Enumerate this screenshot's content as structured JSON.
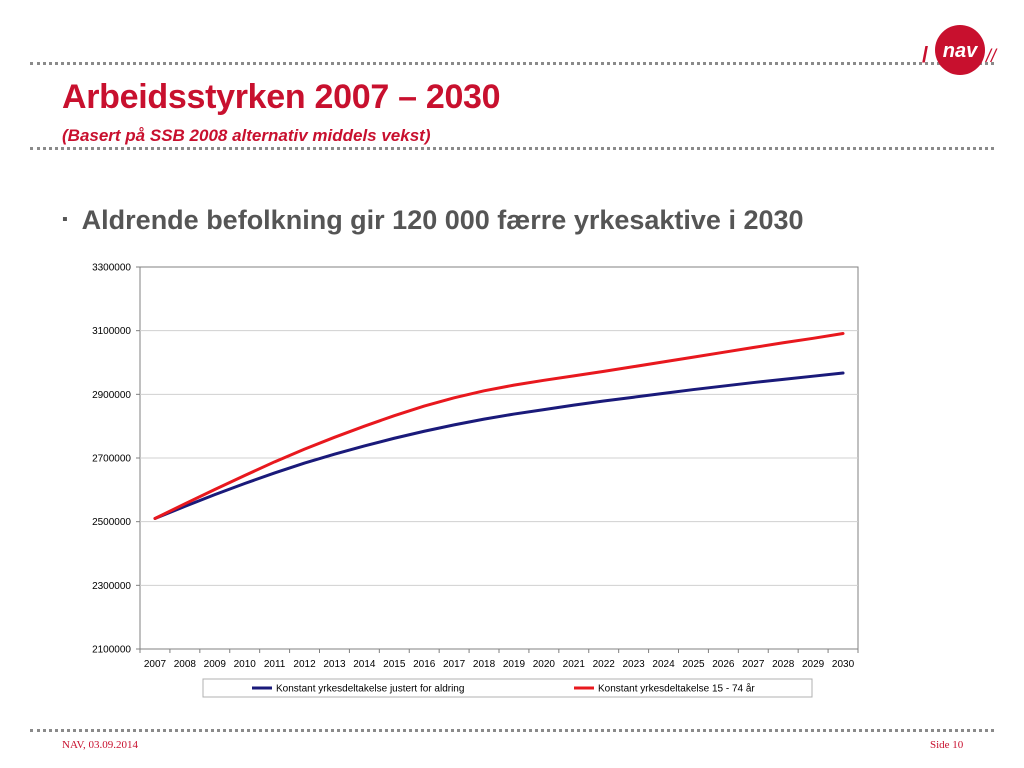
{
  "slide": {
    "title": "Arbeidsstyrken 2007 – 2030",
    "subtitle": "(Basert på SSB 2008 alternativ middels vekst)",
    "bullet": "Aldrende befolkning gir 120 000 færre yrkesaktive i 2030",
    "bullet_marker": "▪",
    "footer_left": "NAV, 03.09.2014",
    "footer_right": "Side 10",
    "logo_text": "nav",
    "accent_color": "#c8102e"
  },
  "chart_data": {
    "type": "line",
    "title": "",
    "xlabel": "",
    "ylabel": "",
    "categories": [
      "2007",
      "2008",
      "2009",
      "2010",
      "2011",
      "2012",
      "2013",
      "2014",
      "2015",
      "2016",
      "2017",
      "2018",
      "2019",
      "2020",
      "2021",
      "2022",
      "2023",
      "2024",
      "2025",
      "2026",
      "2027",
      "2028",
      "2029",
      "2030"
    ],
    "ylim": [
      2100000,
      3300000
    ],
    "yticks": [
      "2100000",
      "2300000",
      "2500000",
      "2700000",
      "2900000",
      "3100000",
      "3300000"
    ],
    "grid": "horizontal",
    "legend_position": "bottom",
    "series": [
      {
        "name": "Konstant yrkesdeltakelse justert for aldring",
        "color": "#1a1a7a",
        "values": [
          2510000,
          2548000,
          2585000,
          2620000,
          2653000,
          2684000,
          2712000,
          2738000,
          2762000,
          2784000,
          2804000,
          2822000,
          2838000,
          2852000,
          2866000,
          2879000,
          2891000,
          2903000,
          2915000,
          2926000,
          2937000,
          2947000,
          2957000,
          2967000
        ]
      },
      {
        "name": "Konstant yrkesdeltakelse 15 - 74 år",
        "color": "#e8181e",
        "values": [
          2510000,
          2556000,
          2601000,
          2645000,
          2688000,
          2728000,
          2765000,
          2800000,
          2833000,
          2863000,
          2889000,
          2911000,
          2929000,
          2944000,
          2958000,
          2972000,
          2987000,
          3002000,
          3017000,
          3032000,
          3047000,
          3062000,
          3076000,
          3091000
        ]
      }
    ]
  }
}
